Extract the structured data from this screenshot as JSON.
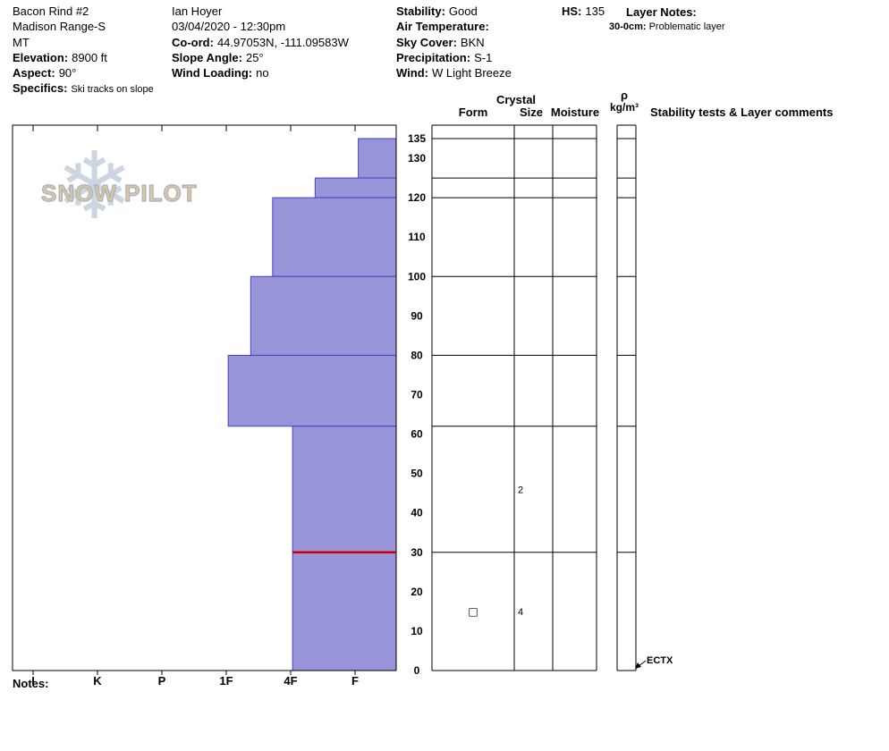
{
  "header": {
    "location": {
      "pit_name": "Bacon Rind #2",
      "range": "Madison Range-S",
      "state": "MT",
      "elevation_label": "Elevation:",
      "elevation_value": "8900 ft",
      "aspect_label": "Aspect:",
      "aspect_value": "90°",
      "specifics_label": "Specifics:",
      "specifics_value": "Ski tracks on slope"
    },
    "observer": {
      "name": "Ian Hoyer",
      "datetime": "03/04/2020 - 12:30pm",
      "coord_label": "Co-ord:",
      "coord_value": "44.97053N, -111.09583W",
      "slope_angle_label": "Slope Angle:",
      "slope_angle_value": "25°",
      "wind_loading_label": "Wind Loading:",
      "wind_loading_value": "no"
    },
    "conditions": {
      "stability_label": "Stability:",
      "stability_value": "Good",
      "air_temp_label": "Air Temperature:",
      "air_temp_value": "",
      "sky_cover_label": "Sky Cover:",
      "sky_cover_value": "BKN",
      "precipitation_label": "Precipitation:",
      "precipitation_value": "S-1",
      "wind_label": "Wind:",
      "wind_value": "W Light Breeze"
    },
    "hs_label": "HS:",
    "hs_value": "135",
    "layer_notes_label": "Layer Notes:",
    "layer_note_range": "30-0cm:",
    "layer_note_text": "Problematic layer"
  },
  "watermark": {
    "text": "SNOW PILOT"
  },
  "table_headers": {
    "crystal": "Crystal",
    "form": "Form",
    "size": "Size",
    "moisture": "Moisture",
    "density_symbol": "ρ",
    "density_unit": "kg/m³",
    "stability": "Stability tests & Layer comments"
  },
  "notes_label": "Notes:",
  "colors": {
    "bar_fill": "#9794d8",
    "bar_border": "#4343bd",
    "flag_line": "#cc0000",
    "grid_line": "#000000"
  },
  "chart_data": {
    "type": "bar",
    "subtype": "snow-profile-hardness",
    "depth_unit": "cm",
    "hs_total_cm": 135,
    "depth_ticks": [
      135,
      130,
      120,
      110,
      100,
      90,
      80,
      70,
      60,
      50,
      40,
      30,
      20,
      10,
      0
    ],
    "hardness_axis": [
      "I",
      "K",
      "P",
      "1F",
      "4F",
      "F"
    ],
    "layers": [
      {
        "top_cm": 135,
        "bottom_cm": 125,
        "hardness": "F",
        "hardness_value": 5.05,
        "grain_form": "",
        "grain_size": "",
        "flagged": false
      },
      {
        "top_cm": 125,
        "bottom_cm": 120,
        "hardness": "4F-F",
        "hardness_value": 4.38,
        "grain_form": "",
        "grain_size": "",
        "flagged": false
      },
      {
        "top_cm": 120,
        "bottom_cm": 100,
        "hardness": "4F",
        "hardness_value": 3.72,
        "grain_form": "",
        "grain_size": "",
        "flagged": false
      },
      {
        "top_cm": 100,
        "bottom_cm": 80,
        "hardness": "1F-4F",
        "hardness_value": 3.38,
        "grain_form": "",
        "grain_size": "",
        "flagged": false
      },
      {
        "top_cm": 80,
        "bottom_cm": 62,
        "hardness": "1F",
        "hardness_value": 3.03,
        "grain_form": "",
        "grain_size": "",
        "flagged": false
      },
      {
        "top_cm": 62,
        "bottom_cm": 30,
        "hardness": "4F",
        "hardness_value": 4.03,
        "grain_form": "",
        "grain_size": "2",
        "flagged": false
      },
      {
        "top_cm": 30,
        "bottom_cm": 0,
        "hardness": "4F",
        "hardness_value": 4.03,
        "grain_form": "□",
        "grain_size": "4",
        "flagged": true
      }
    ],
    "stability_tests": [
      {
        "result": "ECTX",
        "depth_cm": 0
      }
    ]
  }
}
